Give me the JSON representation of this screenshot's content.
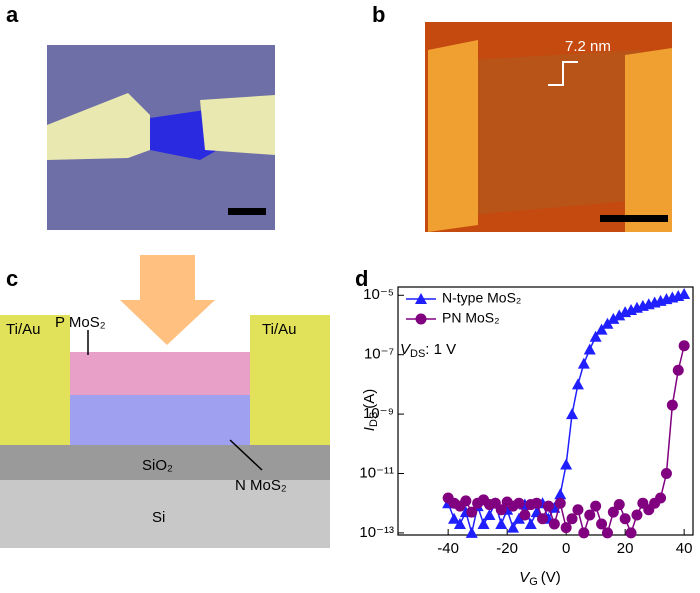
{
  "panels": [
    {
      "label": "a"
    },
    {
      "label": "b",
      "annotation": "7.2 nm"
    },
    {
      "label": "c",
      "labels": {
        "p_layer": "P MoS₂",
        "contact_left": "Ti/Au",
        "contact_right": "Ti/Au",
        "oxide": "SiO₂",
        "n_layer": "N MoS₂",
        "substrate": "Si"
      }
    },
    {
      "label": "d"
    }
  ],
  "chart_data": {
    "type": "line",
    "log_y": true,
    "legend": "upper left",
    "xlabel": {
      "symbol": "V",
      "subscript": "G",
      "unit": "(V)"
    },
    "ylabel": {
      "symbol": "I",
      "subscript": "DS",
      "unit": "(A)"
    },
    "annotation": {
      "symbol": "V",
      "subscript": "DS",
      "text": ": 1 V"
    },
    "xlim": [
      -57,
      43
    ],
    "xticks": [
      -40,
      -20,
      0,
      20,
      40
    ],
    "ylim": [
      8.5e-14,
      1.9e-05
    ],
    "yticks": [
      {
        "value": 1e-13,
        "label": "10⁻¹³"
      },
      {
        "value": 1e-11,
        "label": "10⁻¹¹"
      },
      {
        "value": 1e-09,
        "label": "10⁻⁹"
      },
      {
        "value": 1e-07,
        "label": "10⁻⁷"
      },
      {
        "value": 1e-05,
        "label": "10⁻⁵"
      }
    ],
    "x": [
      -40,
      -38,
      -36,
      -34,
      -32,
      -30,
      -28,
      -26,
      -24,
      -22,
      -20,
      -18,
      -16,
      -14,
      -12,
      -10,
      -8,
      -6,
      -4,
      -2,
      0,
      2,
      4,
      6,
      8,
      10,
      12,
      14,
      16,
      18,
      20,
      22,
      24,
      26,
      28,
      30,
      32,
      34,
      36,
      38,
      40
    ],
    "series": [
      {
        "name": "N-type MoS₂",
        "color": "#1f1fff",
        "marker": "triangle",
        "values": [
          1e-12,
          3e-13,
          2e-13,
          5e-13,
          1e-13,
          8e-13,
          2e-13,
          4e-13,
          1e-12,
          2e-13,
          6e-13,
          1.5e-13,
          3e-13,
          9e-13,
          2e-13,
          5e-13,
          1e-12,
          3e-13,
          7e-13,
          2e-12,
          2e-11,
          1e-09,
          1e-08,
          5e-08,
          1.5e-07,
          4e-07,
          7e-07,
          1.1e-06,
          1.6e-06,
          2.1e-06,
          2.7e-06,
          3.2e-06,
          3.8e-06,
          4.4e-06,
          5e-06,
          5.7e-06,
          6.5e-06,
          7.4e-06,
          8.4e-06,
          9.5e-06,
          1.1e-05
        ]
      },
      {
        "name": "PN MoS₂",
        "color": "#800080",
        "marker": "circle",
        "values": [
          1.5e-12,
          1e-12,
          8e-13,
          1.2e-12,
          5e-13,
          1e-12,
          1.3e-12,
          9e-13,
          1e-12,
          6e-13,
          1.1e-12,
          8e-13,
          1e-12,
          4e-13,
          9e-13,
          1e-12,
          3e-13,
          8e-13,
          2e-13,
          1e-12,
          1.5e-13,
          3e-13,
          6e-13,
          1e-13,
          4e-13,
          8e-13,
          2e-13,
          1e-13,
          5e-13,
          9e-13,
          3e-13,
          1e-13,
          4e-13,
          1e-12,
          6e-13,
          1e-12,
          1.5e-12,
          1e-11,
          2e-09,
          3e-08,
          2e-07
        ]
      }
    ]
  }
}
